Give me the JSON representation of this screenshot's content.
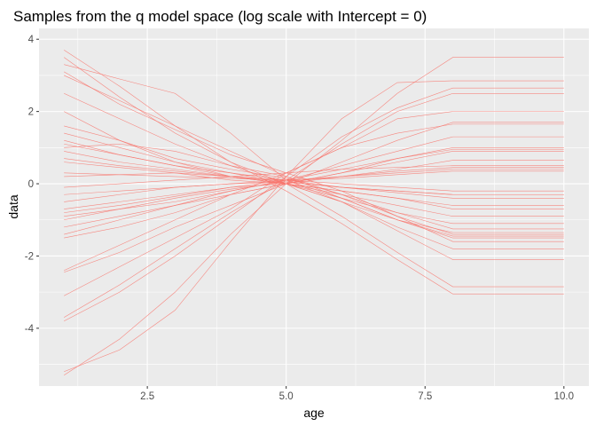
{
  "chart_data": {
    "type": "line",
    "title": "Samples from the q model space (log scale with Intercept = 0)",
    "xlabel": "age",
    "ylabel": "data",
    "xlim": [
      0.55,
      10.45
    ],
    "ylim": [
      -5.6,
      4.3
    ],
    "x_ticks": [
      2.5,
      5.0,
      7.5,
      10.0
    ],
    "x_tick_labels": [
      "2.5",
      "5.0",
      "7.5",
      "10.0"
    ],
    "y_ticks": [
      -4,
      -2,
      0,
      2,
      4
    ],
    "y_tick_labels": [
      "-4",
      "-2",
      "0",
      "2",
      "4"
    ],
    "grid": true,
    "legend": "none",
    "background_color": "#ebebeb",
    "grid_color": "#ffffff",
    "line_color": "#f8766d",
    "x": [
      1,
      2,
      3,
      4,
      5,
      6,
      7,
      8,
      9,
      10
    ],
    "series": [
      {
        "values": [
          3.5,
          2.4,
          1.4,
          0.6,
          0.0,
          -0.9,
          -1.9,
          -2.85,
          -2.85,
          -2.85
        ]
      },
      {
        "values": [
          3.3,
          2.9,
          2.5,
          1.4,
          0.1,
          -0.5,
          -1.2,
          -1.8,
          -1.8,
          -1.8
        ]
      },
      {
        "values": [
          3.0,
          2.3,
          1.6,
          0.9,
          0.2,
          -0.4,
          -1.0,
          -1.35,
          -1.35,
          -1.35
        ]
      },
      {
        "values": [
          2.5,
          1.8,
          1.1,
          0.5,
          0.0,
          -0.5,
          -1.3,
          -2.1,
          -2.1,
          -2.1
        ]
      },
      {
        "values": [
          3.7,
          2.7,
          1.6,
          0.6,
          -0.2,
          -1.1,
          -2.1,
          -3.05,
          -3.05,
          -3.05
        ]
      },
      {
        "values": [
          1.2,
          0.8,
          0.5,
          0.2,
          0.0,
          -0.2,
          -0.4,
          -0.7,
          -0.7,
          -0.7
        ]
      },
      {
        "values": [
          0.9,
          0.6,
          0.4,
          0.2,
          0.1,
          -0.1,
          -0.2,
          -0.3,
          -0.3,
          -0.3
        ]
      },
      {
        "values": [
          2.0,
          1.2,
          0.6,
          0.2,
          0.0,
          -0.4,
          -0.8,
          -1.1,
          -1.1,
          -1.1
        ]
      },
      {
        "values": [
          1.6,
          1.2,
          0.7,
          0.4,
          0.15,
          -0.3,
          -0.8,
          -1.25,
          -1.25,
          -1.25
        ]
      },
      {
        "values": [
          1.1,
          0.8,
          0.5,
          0.3,
          0.1,
          -0.4,
          -1.0,
          -1.5,
          -1.5,
          -1.5
        ]
      },
      {
        "values": [
          0.6,
          0.45,
          0.3,
          0.1,
          0.0,
          -0.2,
          -0.4,
          -0.6,
          -0.6,
          -0.6
        ]
      },
      {
        "values": [
          3.1,
          2.2,
          1.5,
          0.8,
          0.3,
          -0.2,
          -0.9,
          -1.6,
          -1.6,
          -1.6
        ]
      },
      {
        "values": [
          -5.3,
          -4.3,
          -3.0,
          -1.4,
          0.0,
          1.2,
          2.5,
          3.5,
          3.5,
          3.5
        ]
      },
      {
        "values": [
          -5.2,
          -4.6,
          -3.5,
          -1.6,
          0.2,
          1.8,
          2.8,
          2.85,
          2.85,
          2.85
        ]
      },
      {
        "values": [
          -3.8,
          -3.0,
          -2.0,
          -0.9,
          0.2,
          1.3,
          2.1,
          2.65,
          2.65,
          2.65
        ]
      },
      {
        "values": [
          -3.7,
          -2.8,
          -1.8,
          -0.8,
          0.1,
          1.1,
          2.0,
          2.5,
          2.5,
          2.5
        ]
      },
      {
        "values": [
          -3.1,
          -2.3,
          -1.5,
          -0.7,
          0.3,
          1.0,
          1.8,
          2.0,
          2.0,
          2.0
        ]
      },
      {
        "values": [
          -2.4,
          -1.7,
          -1.0,
          -0.3,
          0.3,
          1.0,
          1.4,
          1.65,
          1.65,
          1.65
        ]
      },
      {
        "values": [
          -2.45,
          -1.9,
          -1.2,
          -0.6,
          0.0,
          0.6,
          1.2,
          1.7,
          1.7,
          1.7
        ]
      },
      {
        "values": [
          -1.5,
          -1.2,
          -0.8,
          -0.3,
          0.0,
          0.3,
          0.7,
          0.95,
          0.95,
          0.95
        ]
      },
      {
        "values": [
          -1.4,
          -1.0,
          -0.6,
          -0.2,
          0.1,
          0.4,
          0.7,
          1.0,
          1.0,
          1.0
        ]
      },
      {
        "values": [
          -0.9,
          -0.7,
          -0.4,
          -0.15,
          0.05,
          0.2,
          0.35,
          0.45,
          0.45,
          0.45
        ]
      },
      {
        "values": [
          -0.8,
          -0.6,
          -0.35,
          -0.1,
          0.1,
          0.2,
          0.3,
          0.4,
          0.4,
          0.4
        ]
      },
      {
        "values": [
          -0.7,
          -0.5,
          -0.3,
          -0.1,
          0.0,
          0.2,
          0.4,
          0.65,
          0.65,
          0.65
        ]
      },
      {
        "values": [
          -1.0,
          -0.7,
          -0.5,
          -0.2,
          0.1,
          0.5,
          0.9,
          1.3,
          1.3,
          1.3
        ]
      },
      {
        "values": [
          -0.1,
          0.0,
          0.1,
          0.2,
          0.3,
          0.4,
          0.45,
          0.5,
          0.5,
          0.5
        ]
      },
      {
        "values": [
          0.3,
          0.25,
          0.2,
          0.15,
          0.1,
          0.0,
          -0.1,
          -0.2,
          -0.2,
          -0.2
        ]
      },
      {
        "values": [
          1.0,
          1.1,
          0.9,
          0.5,
          0.2,
          -0.3,
          -0.9,
          -1.4,
          -1.4,
          -1.4
        ]
      },
      {
        "values": [
          -1.2,
          -0.9,
          -0.6,
          -0.3,
          0.0,
          0.3,
          0.6,
          0.9,
          0.9,
          0.9
        ]
      },
      {
        "values": [
          0.7,
          0.5,
          0.35,
          0.2,
          0.05,
          -0.1,
          -0.25,
          -0.4,
          -0.4,
          -0.4
        ]
      },
      {
        "values": [
          -0.5,
          -0.3,
          -0.1,
          0.0,
          0.1,
          0.15,
          0.25,
          0.35,
          0.35,
          0.35
        ]
      },
      {
        "values": [
          1.4,
          1.0,
          0.6,
          0.3,
          0.0,
          -0.3,
          -0.6,
          -0.9,
          -0.9,
          -0.9
        ]
      },
      {
        "values": [
          0.2,
          0.25,
          0.3,
          0.2,
          0.0,
          -0.5,
          -1.0,
          -1.45,
          -1.45,
          -1.45
        ]
      },
      {
        "values": [
          -0.3,
          -0.2,
          -0.1,
          0.0,
          0.05,
          -0.1,
          -0.2,
          -0.3,
          -0.3,
          -0.3
        ]
      }
    ]
  }
}
